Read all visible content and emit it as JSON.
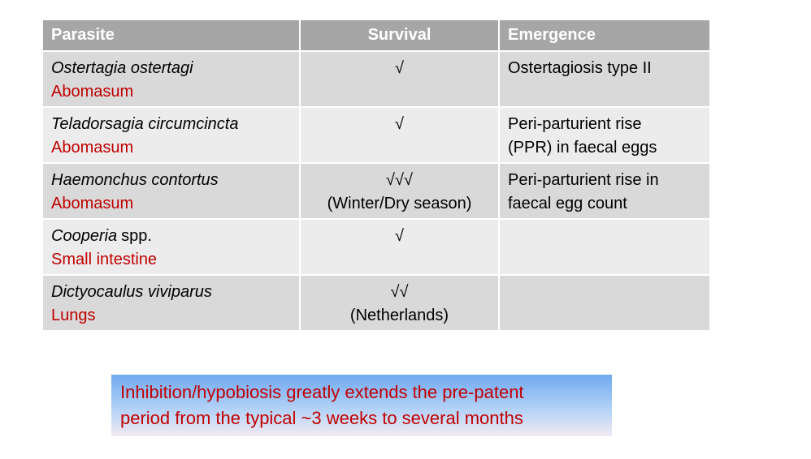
{
  "table": {
    "headers": [
      "Parasite",
      "Survival",
      "Emergence"
    ],
    "rows": [
      {
        "name": "Ostertagia ostertagi",
        "location": "Abomasum",
        "survival": [
          "√"
        ],
        "emergence": [
          "Ostertagiosis type II"
        ]
      },
      {
        "name": "Teladorsagia circumcincta",
        "location": "Abomasum",
        "survival": [
          "√"
        ],
        "emergence": [
          "Peri-parturient rise",
          "(PPR) in faecal eggs"
        ]
      },
      {
        "name": "Haemonchus contortus",
        "location": "Abomasum",
        "survival": [
          "√√√",
          "(Winter/Dry season)"
        ],
        "emergence": [
          "Peri-parturient rise in",
          "faecal egg count"
        ]
      },
      {
        "name": "Cooperia",
        "name_suffix": "spp.",
        "location": "Small intestine",
        "survival": [
          "√"
        ],
        "emergence": []
      },
      {
        "name": "Dictyocaulus viviparus",
        "location": "Lungs",
        "survival": [
          "√√",
          "(Netherlands)"
        ],
        "emergence": []
      }
    ]
  },
  "note": {
    "lines": [
      "Inhibition/hypobiosis greatly extends the pre-patent",
      "period from the typical ~3 weeks to several months"
    ]
  }
}
